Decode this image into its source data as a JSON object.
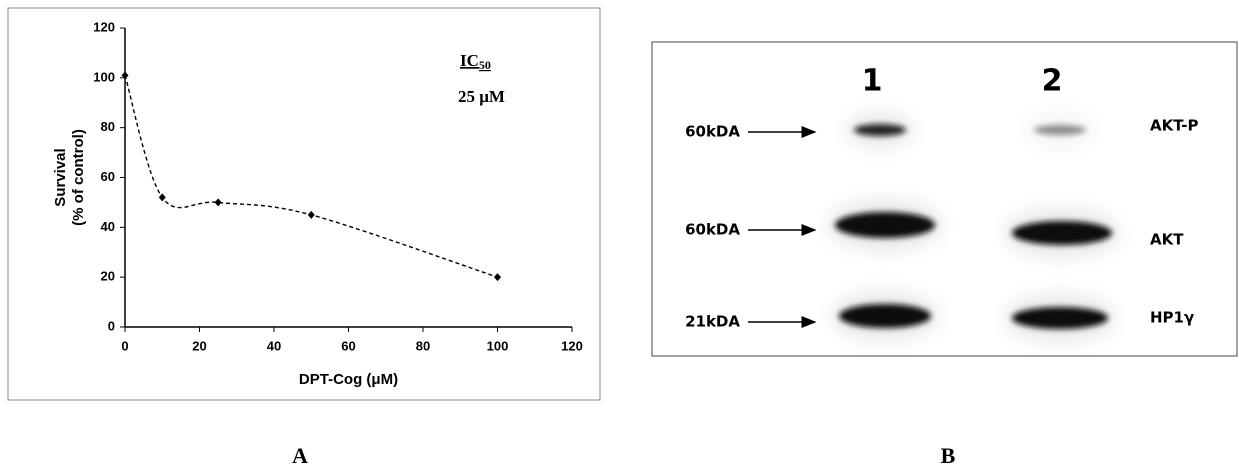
{
  "chart_data": {
    "type": "line",
    "x": [
      0,
      10,
      25,
      50,
      100
    ],
    "series": [
      {
        "color": "#000000",
        "values": [
          101,
          52,
          50,
          45,
          20
        ]
      }
    ],
    "xlim": [
      0,
      120
    ],
    "xticks": [
      0,
      20,
      40,
      60,
      80,
      100,
      120
    ],
    "ylim": [
      0,
      120
    ],
    "yticks": [
      0,
      20,
      40,
      60,
      80,
      100,
      120
    ],
    "xlabel": "DPT-Cog (μM)",
    "ylabel": [
      "Survival",
      "(% of control)"
    ],
    "smooth": true,
    "line_style": "dashed",
    "grid": false,
    "annotation": {
      "text": "IC",
      "subscript": "50",
      "value": "25 μM"
    }
  },
  "blot": {
    "lanes": [
      "1",
      "2"
    ],
    "rows": [
      {
        "marker": "60kDA",
        "protein": "AKT-P"
      },
      {
        "marker": "60kDA",
        "protein": "AKT"
      },
      {
        "marker": "21kDA",
        "protein": "HP1γ"
      }
    ]
  },
  "panel_labels": [
    "A",
    "B"
  ]
}
